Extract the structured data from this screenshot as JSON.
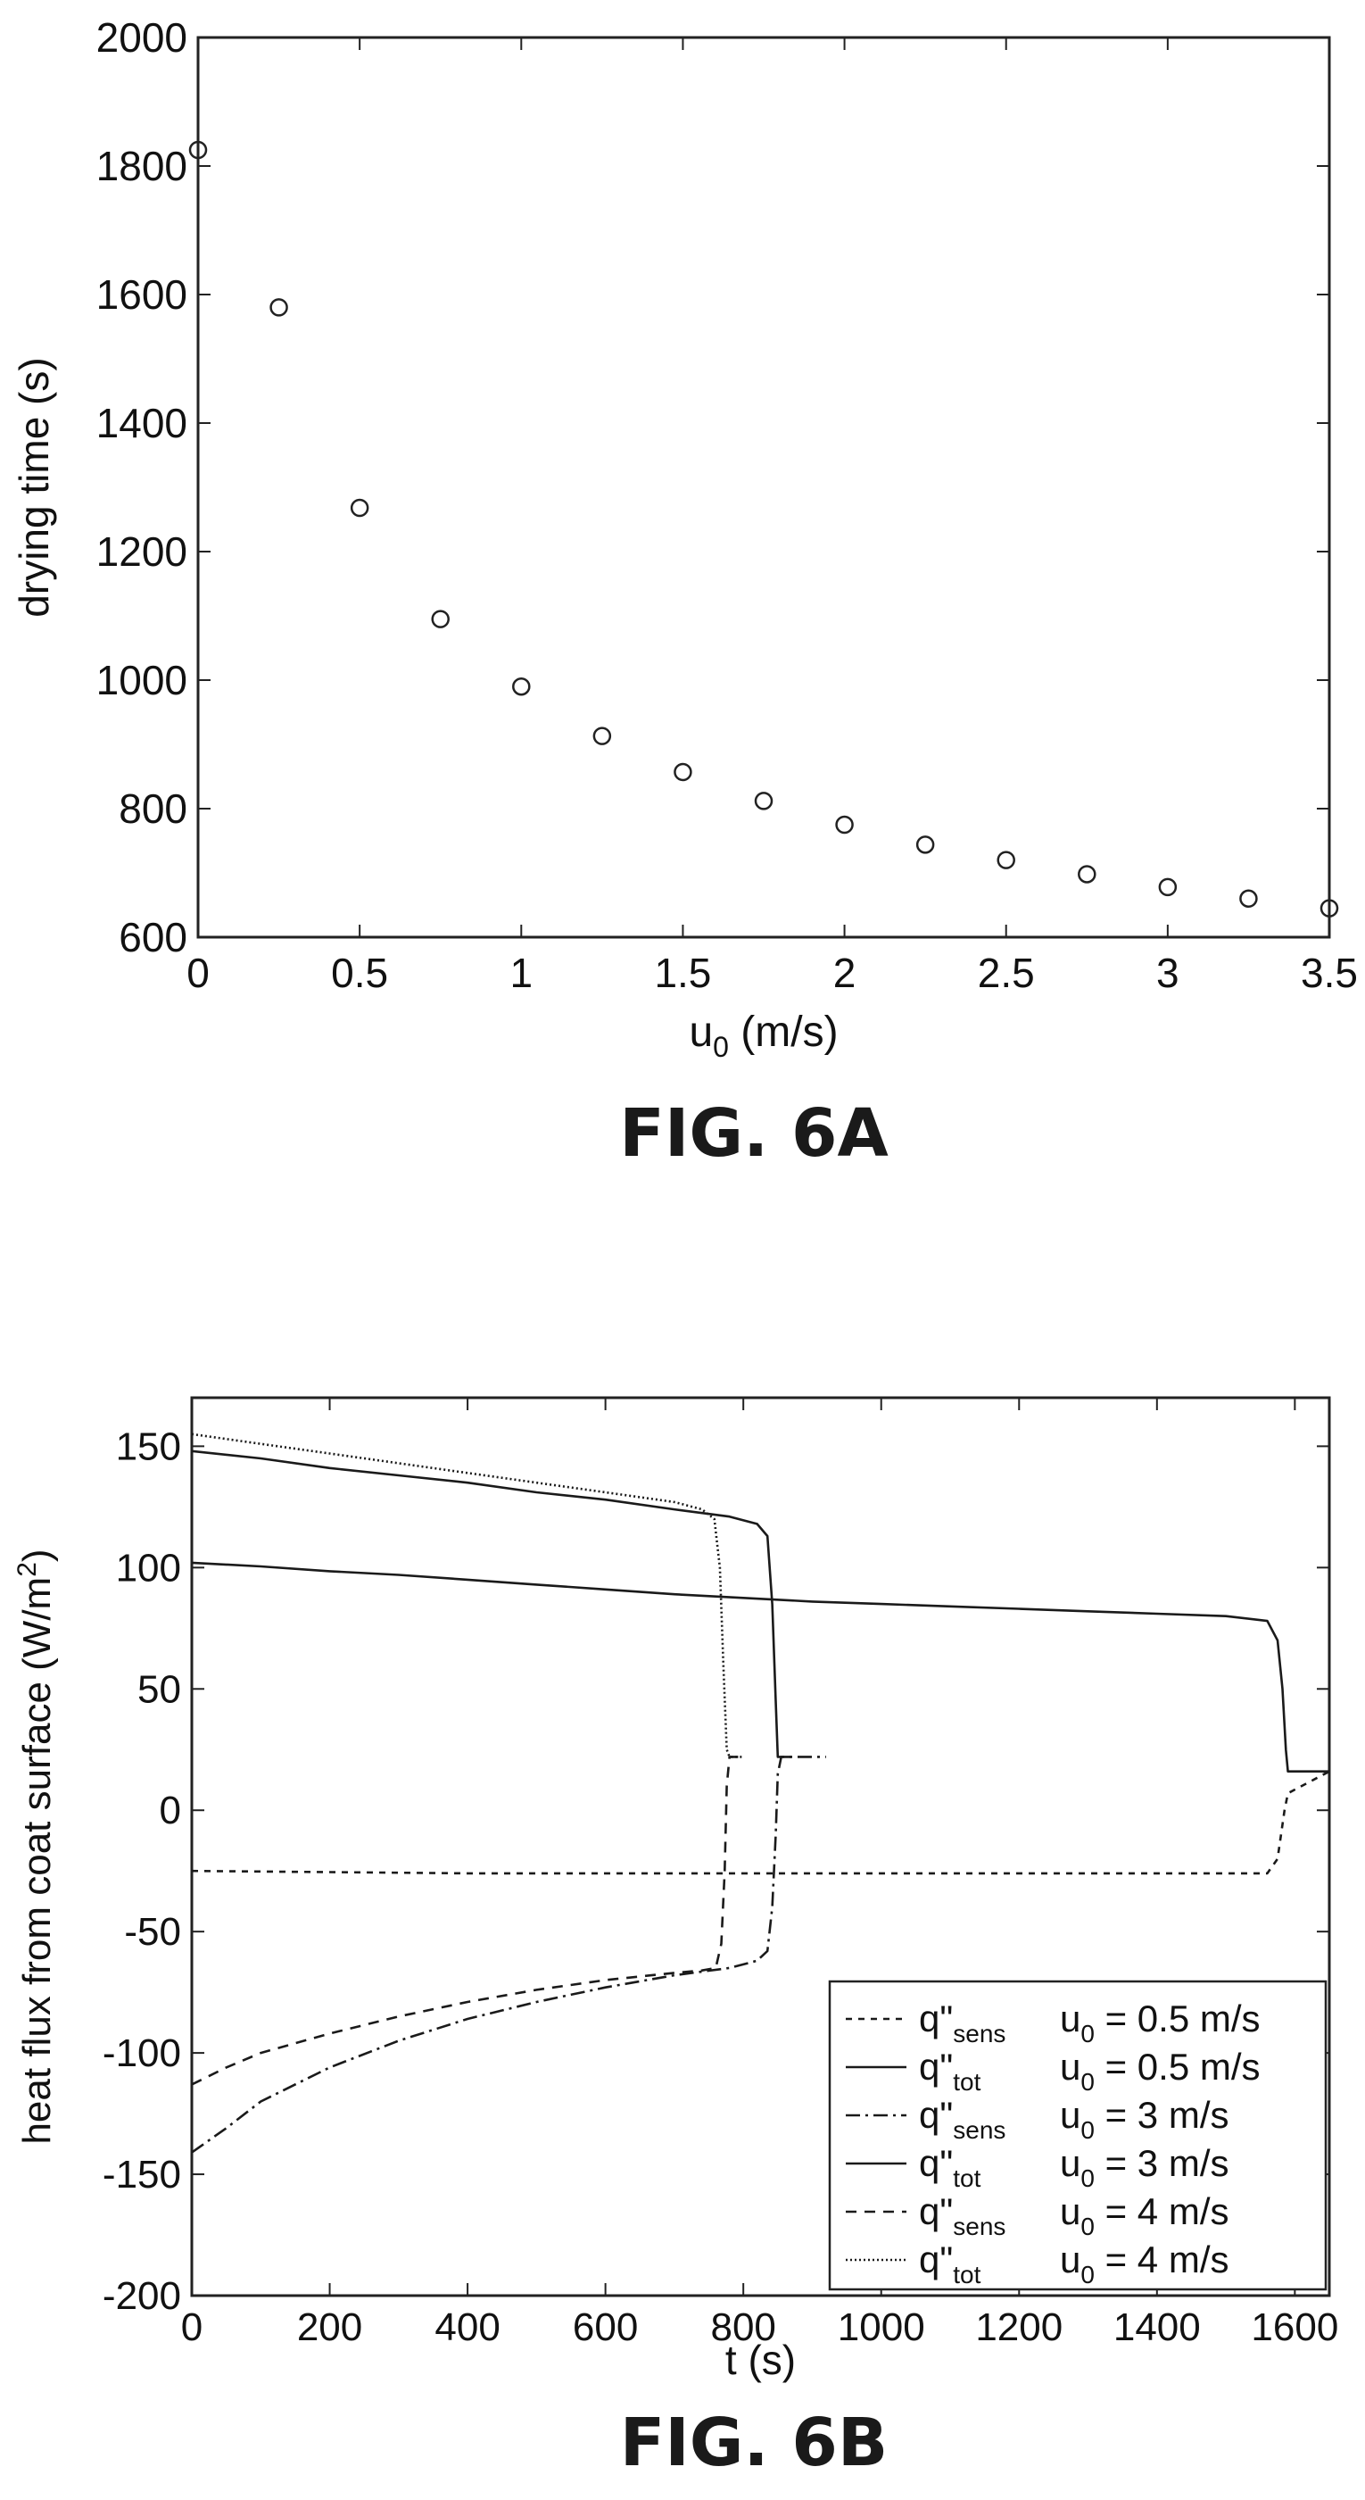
{
  "chart_data": [
    {
      "id": "fig-6a",
      "type": "scatter",
      "caption": "FIG. 6A",
      "title": "",
      "xlabel": "u",
      "xlabel_sub": "0",
      "xlabel_unit": " (m/s)",
      "ylabel": "drying time (s)",
      "xlim": [
        0,
        3.5
      ],
      "ylim": [
        600,
        2000
      ],
      "xticks": [
        "0",
        "0.5",
        "1",
        "1.5",
        "2",
        "2.5",
        "3",
        "3.5"
      ],
      "yticks": [
        "600",
        "800",
        "1000",
        "1200",
        "1400",
        "1600",
        "1800",
        "2000"
      ],
      "marker": "circle-open",
      "grid": false,
      "series": [
        {
          "x": [
            0,
            0.25,
            0.5,
            0.75,
            1.0,
            1.25,
            1.5,
            1.75,
            2.0,
            2.25,
            2.5,
            2.75,
            3.0,
            3.25,
            3.5
          ],
          "y": [
            1825,
            1580,
            1268,
            1095,
            990,
            913,
            857,
            812,
            775,
            744,
            720,
            698,
            678,
            660,
            645
          ]
        }
      ]
    },
    {
      "id": "fig-6b",
      "type": "line",
      "caption": "FIG. 6B",
      "title": "",
      "xlabel": "t (s)",
      "ylabel": "heat flux from coat surface (W/m",
      "ylabel_sup": "2",
      "ylabel_close": ")",
      "xlim": [
        0,
        1650
      ],
      "ylim": [
        -200,
        170
      ],
      "xticks": [
        "0",
        "200",
        "400",
        "600",
        "800",
        "1000",
        "1200",
        "1400",
        "1600"
      ],
      "yticks": [
        "-200",
        "-150",
        "-100",
        "-50",
        "0",
        "50",
        "100",
        "150"
      ],
      "grid": false,
      "legend_position": "bottom-right",
      "series": [
        {
          "legend": {
            "q": "q\"",
            "sub": "sens",
            "u": "u",
            "u_sub": "0",
            "value": " = 0.5 m/s"
          },
          "dash": "7,7",
          "x": [
            0,
            200,
            400,
            600,
            800,
            1000,
            1200,
            1400,
            1560,
            1575,
            1585,
            1590,
            1650
          ],
          "y": [
            -25,
            -25.5,
            -26,
            -26,
            -26,
            -26,
            -26,
            -26,
            -26,
            -20,
            0,
            7,
            16
          ]
        },
        {
          "legend": {
            "q": "q\"",
            "sub": "tot",
            "u": "u",
            "u_sub": "0",
            "value": " = 0.5 m/s"
          },
          "dash": "",
          "x": [
            0,
            100,
            200,
            300,
            400,
            500,
            600,
            700,
            800,
            900,
            1000,
            1100,
            1200,
            1300,
            1400,
            1500,
            1560,
            1575,
            1582,
            1587,
            1590,
            1650
          ],
          "y": [
            102,
            100.5,
            98.5,
            97,
            95,
            93,
            91,
            89,
            87.5,
            86,
            85,
            84,
            83,
            82,
            81,
            80,
            78,
            70,
            50,
            25,
            16,
            16
          ]
        },
        {
          "legend": {
            "q": "q\"",
            "sub": "sens",
            "u": "u",
            "u_sub": "0",
            "value": " = 3 m/s"
          },
          "dash": "16,6,3,6",
          "x": [
            0,
            50,
            100,
            200,
            300,
            400,
            500,
            600,
            700,
            780,
            820,
            835,
            842,
            847,
            850,
            855,
            920
          ],
          "y": [
            -141,
            -131,
            -120,
            -106,
            -95,
            -86,
            -79,
            -73,
            -68,
            -65,
            -62,
            -58,
            -40,
            -10,
            15,
            22,
            22
          ]
        },
        {
          "legend": {
            "q": "q\"",
            "sub": "tot",
            "u": "u",
            "u_sub": "0",
            "value": " = 3 m/s"
          },
          "dash": "",
          "x": [
            0,
            100,
            200,
            300,
            400,
            500,
            600,
            700,
            780,
            820,
            835,
            842,
            847,
            850,
            855,
            870
          ],
          "y": [
            148,
            145,
            141,
            138,
            135,
            131,
            128,
            124,
            121,
            118,
            113,
            85,
            45,
            22,
            22,
            22
          ]
        },
        {
          "legend": {
            "q": "q\"",
            "sub": "sens",
            "u": "u",
            "u_sub": "0",
            "value": " = 4 m/s"
          },
          "dash": "12,9",
          "x": [
            0,
            50,
            100,
            200,
            300,
            400,
            500,
            600,
            700,
            740,
            760,
            768,
            773,
            776,
            780,
            800
          ],
          "y": [
            -113,
            -106,
            -100,
            -92,
            -85,
            -79,
            -74,
            -70,
            -67,
            -66,
            -65,
            -55,
            -25,
            10,
            22,
            22
          ]
        },
        {
          "legend": {
            "q": "q\"",
            "sub": "tot",
            "u": "u",
            "u_sub": "0",
            "value": " = 4 m/s"
          },
          "dash": "2,3",
          "x": [
            0,
            100,
            200,
            300,
            400,
            500,
            600,
            700,
            740,
            758,
            766,
            771,
            776,
            780,
            800
          ],
          "y": [
            155,
            151,
            147,
            143,
            139,
            135,
            131,
            127,
            124,
            120,
            100,
            60,
            25,
            22,
            22
          ]
        }
      ]
    }
  ]
}
